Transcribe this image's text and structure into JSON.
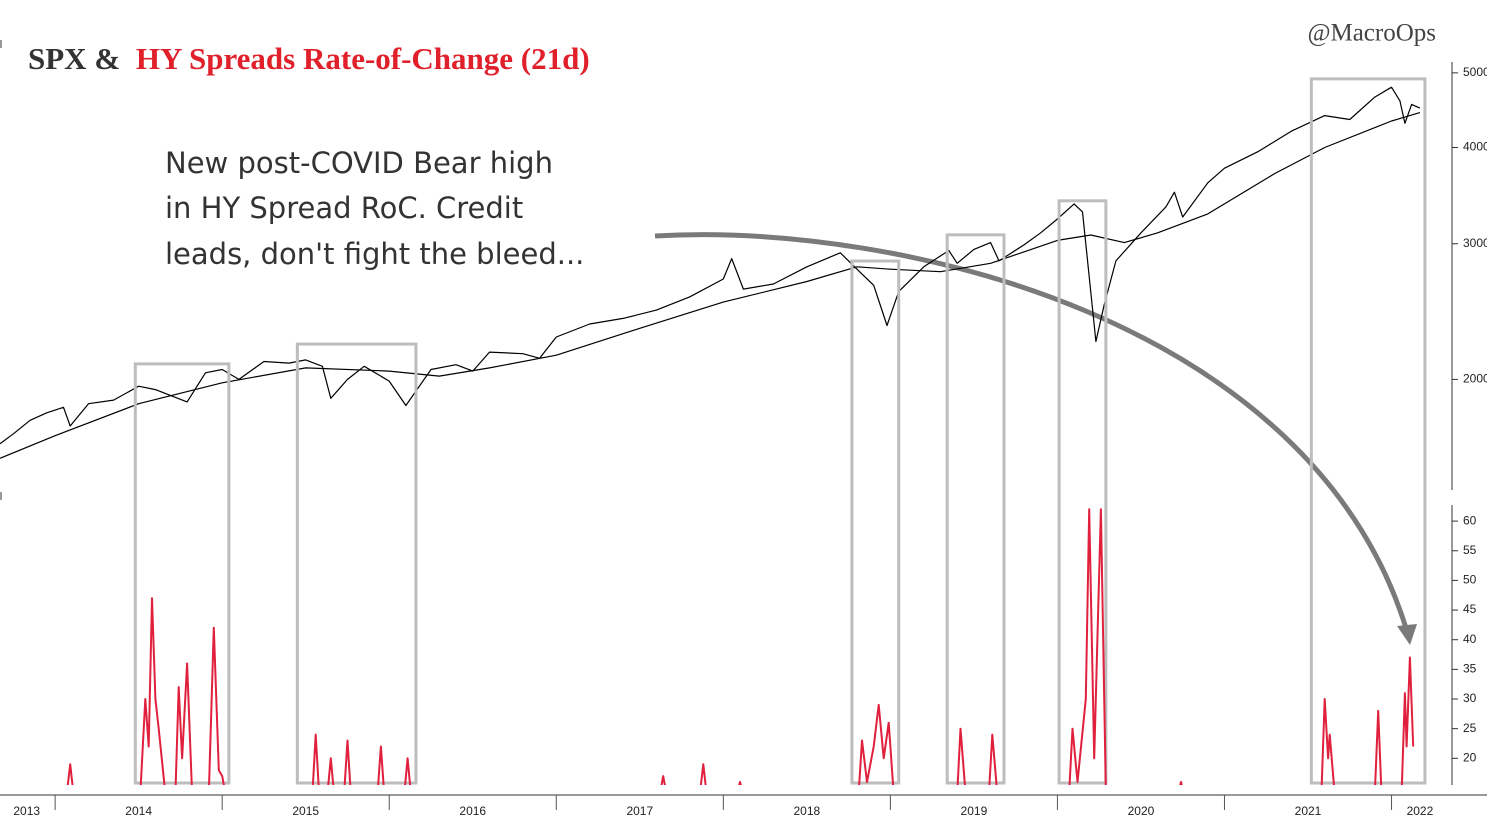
{
  "title_parts": [
    "SPX &",
    "HY Spreads Rate-of-Change (21d)"
  ],
  "title_colors": [
    "#333333",
    "#e0202a"
  ],
  "credit": "@MacroOps",
  "annotation_lines": [
    "New post-COVID Bear high",
    "in HY Spread RoC. Credit",
    "leads, don't fight the bleed..."
  ],
  "chart_data": [
    {
      "type": "line",
      "log_scale": true,
      "xlim": [
        2013.67,
        2022.35
      ],
      "ylim": [
        1437,
        5165
      ],
      "yticks": [
        2000,
        3000,
        4000,
        5000
      ],
      "series": [
        {
          "color": "#000000",
          "x": [
            2013.67,
            2013.75,
            2013.85,
            2013.95,
            2014.05,
            2014.09,
            2014.2,
            2014.35,
            2014.5,
            2014.6,
            2014.79,
            2014.9,
            2015.0,
            2015.1,
            2015.25,
            2015.4,
            2015.5,
            2015.6,
            2015.65,
            2015.75,
            2015.85,
            2016.0,
            2016.1,
            2016.25,
            2016.4,
            2016.5,
            2016.6,
            2016.8,
            2016.9,
            2017.0,
            2017.2,
            2017.4,
            2017.6,
            2017.8,
            2018.0,
            2018.05,
            2018.12,
            2018.3,
            2018.5,
            2018.7,
            2018.8,
            2018.9,
            2018.98,
            2019.05,
            2019.2,
            2019.35,
            2019.4,
            2019.5,
            2019.6,
            2019.65,
            2019.8,
            2019.9,
            2020.0,
            2020.1,
            2020.15,
            2020.23,
            2020.28,
            2020.35,
            2020.5,
            2020.65,
            2020.7,
            2020.75,
            2020.9,
            2021.0,
            2021.2,
            2021.4,
            2021.6,
            2021.75,
            2021.9,
            2022.0,
            2022.05,
            2022.08,
            2022.12,
            2022.17
          ],
          "values": [
            1650,
            1700,
            1770,
            1810,
            1840,
            1740,
            1860,
            1880,
            1960,
            1940,
            1870,
            2040,
            2060,
            2000,
            2110,
            2100,
            2120,
            2080,
            1890,
            2000,
            2080,
            1990,
            1850,
            2060,
            2090,
            2050,
            2170,
            2160,
            2130,
            2270,
            2360,
            2400,
            2460,
            2560,
            2700,
            2870,
            2620,
            2660,
            2800,
            2920,
            2780,
            2650,
            2350,
            2600,
            2800,
            2940,
            2830,
            2950,
            3010,
            2850,
            2990,
            3100,
            3230,
            3380,
            3300,
            2240,
            2500,
            2850,
            3100,
            3350,
            3500,
            3250,
            3600,
            3760,
            3950,
            4200,
            4400,
            4350,
            4650,
            4790,
            4600,
            4300,
            4550,
            4500
          ]
        },
        {
          "color": "#000000",
          "x": [
            2013.67,
            2014.0,
            2014.5,
            2015.0,
            2015.5,
            2016.0,
            2016.3,
            2016.6,
            2017.0,
            2017.5,
            2018.0,
            2018.5,
            2018.8,
            2019.0,
            2019.3,
            2019.6,
            2020.0,
            2020.2,
            2020.4,
            2020.6,
            2020.9,
            2021.3,
            2021.6,
            2022.0,
            2022.17
          ],
          "values": [
            1580,
            1690,
            1860,
            1980,
            2070,
            2050,
            2020,
            2070,
            2150,
            2330,
            2520,
            2680,
            2800,
            2780,
            2760,
            2830,
            3030,
            3080,
            3010,
            3100,
            3280,
            3700,
            4000,
            4330,
            4440
          ]
        }
      ],
      "highlights": [
        {
          "start": 2014.48,
          "end": 2015.04,
          "top": 2095
        },
        {
          "start": 2015.45,
          "end": 2016.16,
          "top": 2223
        },
        {
          "start": 2018.77,
          "end": 2019.05,
          "top": 2849
        },
        {
          "start": 2019.34,
          "end": 2019.68,
          "top": 3081
        },
        {
          "start": 2020.01,
          "end": 2020.29,
          "top": 3411
        },
        {
          "start": 2021.52,
          "end": 2022.2,
          "top": 4911
        }
      ]
    },
    {
      "type": "line",
      "xlim": [
        2013.67,
        2022.35
      ],
      "ylim": [
        15.5,
        64.4
      ],
      "yticks": [
        20,
        25,
        30,
        35,
        40,
        45,
        50,
        55,
        60
      ],
      "xticks": [
        {
          "value": 2013.83,
          "label": "2013"
        },
        {
          "value": 2014.5,
          "label": "2014"
        },
        {
          "value": 2015.5,
          "label": "2015"
        },
        {
          "value": 2016.5,
          "label": "2016"
        },
        {
          "value": 2017.5,
          "label": "2017"
        },
        {
          "value": 2018.5,
          "label": "2018"
        },
        {
          "value": 2019.5,
          "label": "2019"
        },
        {
          "value": 2020.5,
          "label": "2020"
        },
        {
          "value": 2021.5,
          "label": "2021"
        },
        {
          "value": 2022.17,
          "label": "2022"
        }
      ],
      "xminorticks": [
        2014,
        2015,
        2016,
        2017,
        2018,
        2019,
        2020,
        2021,
        2022
      ],
      "series": [
        {
          "color": "#e0203c",
          "x": [
            2013.67,
            2014.07,
            2014.09,
            2014.11,
            2014.51,
            2014.54,
            2014.56,
            2014.58,
            2014.6,
            2014.62,
            2014.66,
            2014.72,
            2014.74,
            2014.76,
            2014.79,
            2014.82,
            2014.92,
            2014.95,
            2014.98,
            2015.0,
            2015.02,
            2015.54,
            2015.56,
            2015.58,
            2015.63,
            2015.65,
            2015.67,
            2015.73,
            2015.75,
            2015.77,
            2015.93,
            2015.95,
            2015.97,
            2016.09,
            2016.11,
            2016.13,
            2017.62,
            2017.64,
            2017.66,
            2017.86,
            2017.88,
            2017.9,
            2018.08,
            2018.1,
            2018.12,
            2018.81,
            2018.83,
            2018.86,
            2018.9,
            2018.93,
            2018.96,
            2018.99,
            2019.02,
            2019.4,
            2019.42,
            2019.45,
            2019.59,
            2019.61,
            2019.64,
            2020.07,
            2020.09,
            2020.12,
            2020.17,
            2020.19,
            2020.22,
            2020.26,
            2020.29,
            2020.72,
            2020.74,
            2020.76,
            2021.58,
            2021.6,
            2021.62,
            2021.63,
            2021.66,
            2021.9,
            2021.92,
            2021.94,
            2022.06,
            2022.08,
            2022.09,
            2022.11,
            2022.13
          ],
          "values": [
            14,
            14,
            19,
            14,
            14,
            30,
            22,
            47,
            30,
            25,
            14,
            14,
            32,
            20,
            36,
            14,
            14,
            42,
            18,
            17,
            14,
            14,
            24,
            14,
            14,
            20,
            14,
            14,
            23,
            14,
            14,
            22,
            14,
            14,
            20,
            14,
            14,
            17,
            14,
            14,
            19,
            14,
            14,
            16,
            14,
            14,
            23,
            16,
            22,
            29,
            20,
            26,
            14,
            14,
            25,
            14,
            14,
            24,
            14,
            14,
            25,
            16,
            30,
            62,
            20,
            62,
            14,
            14,
            16,
            14,
            14,
            30,
            20,
            24,
            14,
            14,
            28,
            14,
            14,
            31,
            22,
            37,
            22
          ]
        }
      ]
    }
  ]
}
